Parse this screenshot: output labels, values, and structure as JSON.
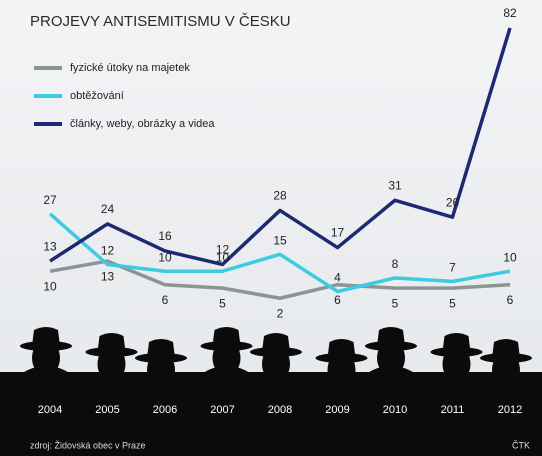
{
  "chart_data": {
    "type": "line",
    "title": "PROJEVY ANTISEMITISMU V ČESKU",
    "categories": [
      "2004",
      "2005",
      "2006",
      "2007",
      "2008",
      "2009",
      "2010",
      "2011",
      "2012"
    ],
    "series": [
      {
        "name": "fyzické útoky na majetek",
        "color": "#8e9494",
        "values": [
          10,
          13,
          6,
          5,
          2,
          6,
          5,
          5,
          6
        ]
      },
      {
        "name": "obtěžování",
        "color": "#3ccbe0",
        "values": [
          27,
          12,
          10,
          10,
          15,
          4,
          8,
          7,
          10
        ]
      },
      {
        "name": "články, weby, obrázky a videa",
        "color": "#1c2a72",
        "values": [
          13,
          24,
          16,
          12,
          28,
          17,
          31,
          26,
          82
        ]
      }
    ],
    "source": "zdroj: Židovská obec v Praze",
    "credit": "ČTK"
  }
}
